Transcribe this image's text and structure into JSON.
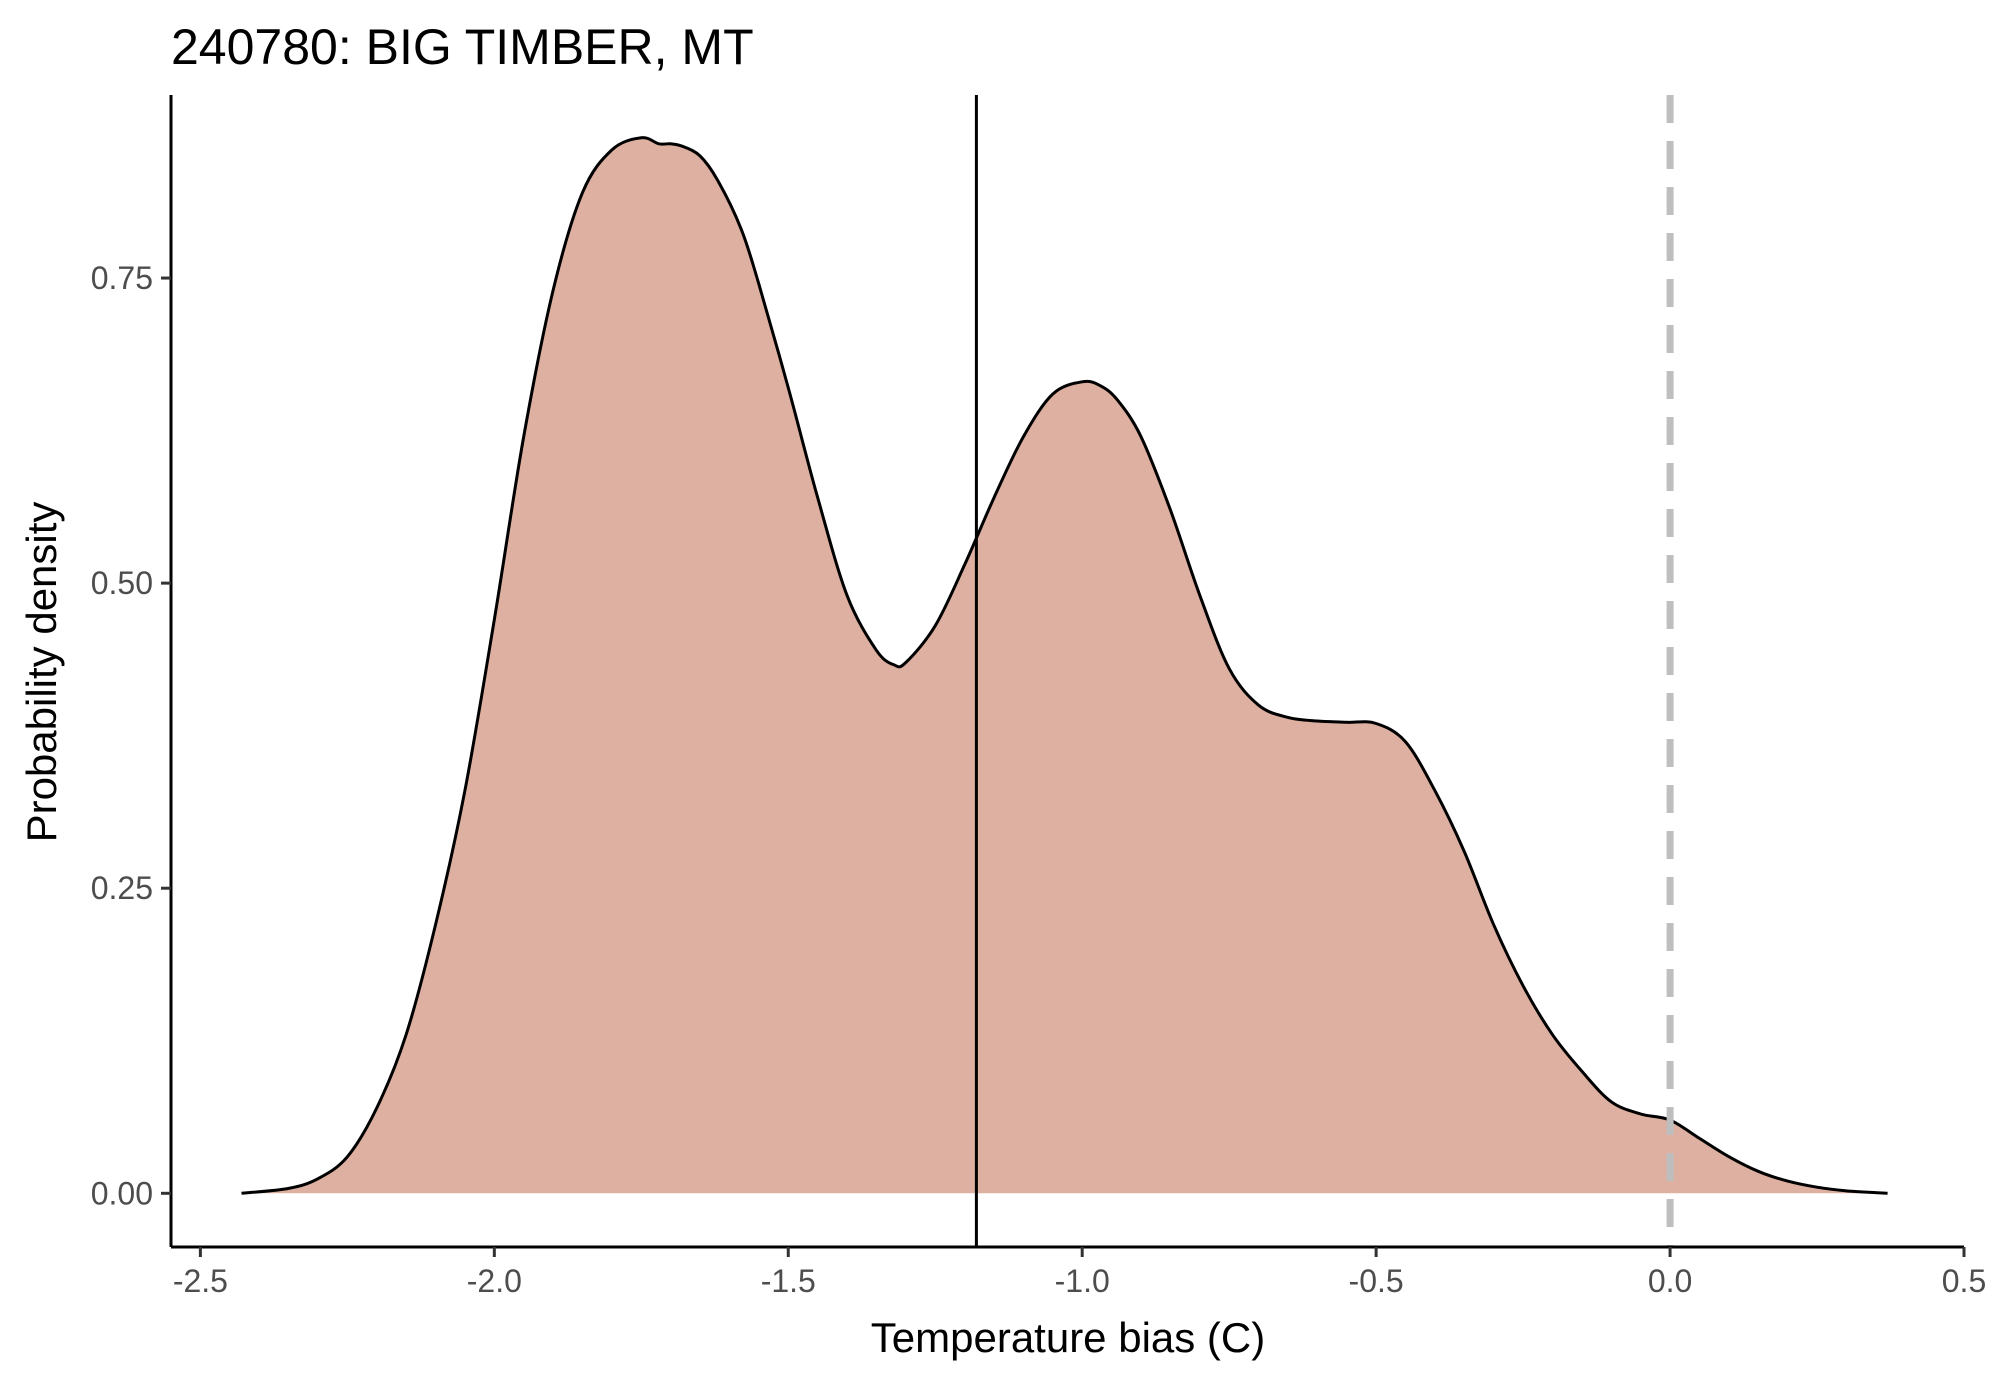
{
  "chart_data": {
    "type": "area",
    "title": "240780: BIG TIMBER, MT",
    "xlabel": "Temperature bias (C)",
    "ylabel": "Probability density",
    "xlim": [
      -2.55,
      0.5
    ],
    "ylim": [
      -0.044,
      0.9
    ],
    "x_ticks": [
      -2.5,
      -2.0,
      -1.5,
      -1.0,
      -0.5,
      0.0,
      0.5
    ],
    "x_tick_labels": [
      "-2.5",
      "-2.0",
      "-1.5",
      "-1.0",
      "-0.5",
      "0.0",
      "0.5"
    ],
    "y_ticks": [
      0.0,
      0.25,
      0.5,
      0.75
    ],
    "y_tick_labels": [
      "0.00",
      "0.25",
      "0.50",
      "0.75"
    ],
    "grid": false,
    "legend": "none",
    "fill_color": "#ddb0a1",
    "line_color": "#000000",
    "series": [
      {
        "x": [
          -2.43,
          -2.35,
          -2.3,
          -2.25,
          -2.2,
          -2.15,
          -2.1,
          -2.05,
          -2.0,
          -1.95,
          -1.9,
          -1.85,
          -1.8,
          -1.75,
          -1.72,
          -1.7,
          -1.68,
          -1.65,
          -1.62,
          -1.58,
          -1.55,
          -1.5,
          -1.45,
          -1.4,
          -1.35,
          -1.32,
          -1.3,
          -1.25,
          -1.2,
          -1.15,
          -1.1,
          -1.05,
          -1.0,
          -0.97,
          -0.94,
          -0.9,
          -0.85,
          -0.8,
          -0.75,
          -0.7,
          -0.65,
          -0.6,
          -0.55,
          -0.5,
          -0.45,
          -0.4,
          -0.35,
          -0.3,
          -0.25,
          -0.2,
          -0.15,
          -0.1,
          -0.05,
          0.0,
          0.05,
          0.1,
          0.15,
          0.2,
          0.25,
          0.3,
          0.37
        ],
        "y": [
          0.0,
          0.004,
          0.012,
          0.03,
          0.07,
          0.13,
          0.22,
          0.33,
          0.47,
          0.62,
          0.74,
          0.82,
          0.855,
          0.865,
          0.86,
          0.86,
          0.858,
          0.85,
          0.83,
          0.79,
          0.745,
          0.66,
          0.57,
          0.49,
          0.445,
          0.433,
          0.435,
          0.465,
          0.515,
          0.57,
          0.62,
          0.655,
          0.665,
          0.662,
          0.65,
          0.62,
          0.56,
          0.49,
          0.43,
          0.4,
          0.39,
          0.387,
          0.386,
          0.385,
          0.37,
          0.33,
          0.28,
          0.22,
          0.17,
          0.13,
          0.1,
          0.075,
          0.065,
          0.06,
          0.045,
          0.03,
          0.018,
          0.01,
          0.005,
          0.002,
          0.0
        ]
      }
    ],
    "vlines": [
      {
        "x": -1.18,
        "style": "solid",
        "color": "#000000"
      },
      {
        "x": 0.0,
        "style": "dashed",
        "color": "#bebebe"
      }
    ]
  }
}
